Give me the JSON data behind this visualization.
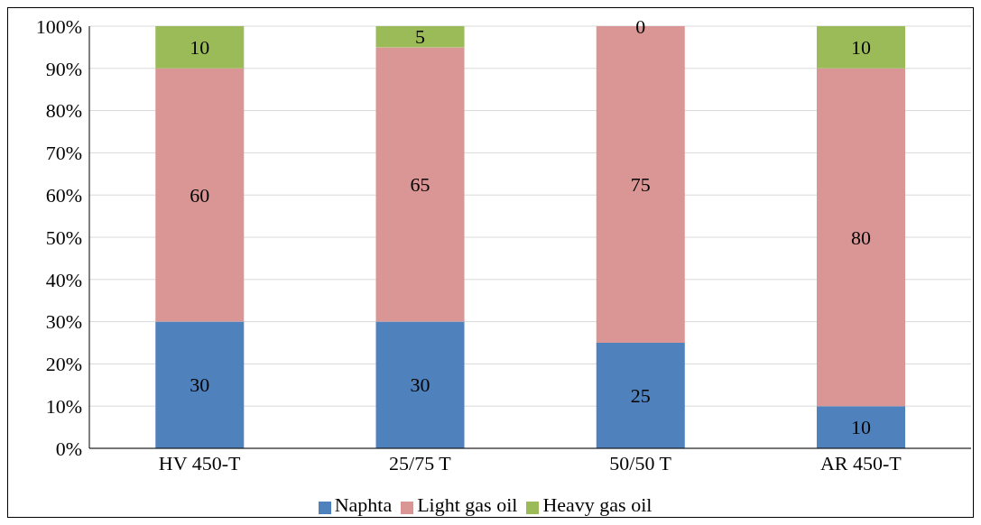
{
  "chart_data": {
    "type": "bar",
    "stacked": true,
    "categories": [
      "HV 450-T",
      "25/75 T",
      "50/50 T",
      "AR 450-T"
    ],
    "series": [
      {
        "name": "Naphta",
        "color": "#4f81bd",
        "values": [
          30,
          30,
          25,
          10
        ]
      },
      {
        "name": "Light gas oil",
        "color": "#d99694",
        "values": [
          60,
          65,
          75,
          80
        ]
      },
      {
        "name": "Heavy gas oil",
        "color": "#9bbb59",
        "values": [
          10,
          5,
          0,
          10
        ]
      }
    ],
    "ylim": [
      0,
      100
    ],
    "yticks": [
      {
        "value": 0,
        "label": "0%"
      },
      {
        "value": 10,
        "label": "10%"
      },
      {
        "value": 20,
        "label": "20%"
      },
      {
        "value": 30,
        "label": "30%"
      },
      {
        "value": 40,
        "label": "40%"
      },
      {
        "value": 50,
        "label": "50%"
      },
      {
        "value": 60,
        "label": "60%"
      },
      {
        "value": 70,
        "label": "70%"
      },
      {
        "value": 80,
        "label": "80%"
      },
      {
        "value": 90,
        "label": "90%"
      },
      {
        "value": 100,
        "label": "100%"
      }
    ],
    "grid": "y",
    "legend": "bottom",
    "data_labels": true
  }
}
